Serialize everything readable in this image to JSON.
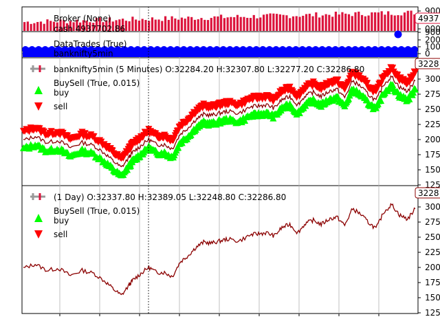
{
  "colors": {
    "broker_bar": "#dc143c",
    "trades_marker": "#0000ff",
    "buy_marker": "#00ff00",
    "sell_marker": "#ff0000",
    "price_line": "#8b0000",
    "grid": "#b0b0b0",
    "axis": "#000000",
    "cursor": "#000000"
  },
  "chart_data": [
    {
      "id": "broker",
      "type": "bar",
      "legend": {
        "line1": "Broker (None)",
        "line2": "cash 4937702.86"
      },
      "yticks": [
        "900",
        "000"
      ],
      "last_value_tag": "4937",
      "bars": 120
    },
    {
      "id": "trades",
      "type": "scatter",
      "legend": {
        "line1": "DataTrades (True)",
        "line2": "banknifty5min"
      },
      "yticks": [
        "900",
        "200",
        "100",
        "0"
      ],
      "outlier_marker": true
    },
    {
      "id": "price5m",
      "type": "line",
      "legend_title": "banknifty5min (5 Minutes) O:32284.20 H:32307.80 L:32277.20 C:32286.80",
      "legend_items": [
        {
          "marker": "none",
          "label": "BuySell (True, 0.015)"
        },
        {
          "marker": "buy",
          "label": "buy"
        },
        {
          "marker": "sell",
          "label": "sell"
        }
      ],
      "yticks": [
        "125",
        "150",
        "175",
        "200",
        "225",
        "250",
        "275",
        "300"
      ],
      "last_value_tag": "3228",
      "x": [
        0,
        0.03,
        0.06,
        0.09,
        0.12,
        0.15,
        0.18,
        0.21,
        0.23,
        0.25,
        0.27,
        0.28,
        0.3,
        0.32,
        0.34,
        0.36,
        0.38,
        0.4,
        0.42,
        0.44,
        0.46,
        0.48,
        0.5,
        0.52,
        0.55,
        0.58,
        0.6,
        0.62,
        0.64,
        0.66,
        0.68,
        0.7,
        0.72,
        0.74,
        0.76,
        0.78,
        0.8,
        0.82,
        0.84,
        0.86,
        0.88,
        0.9,
        0.92,
        0.94,
        0.96,
        0.98,
        1.0
      ],
      "y": [
        0.38,
        0.42,
        0.36,
        0.38,
        0.31,
        0.36,
        0.33,
        0.25,
        0.18,
        0.12,
        0.22,
        0.27,
        0.33,
        0.39,
        0.34,
        0.34,
        0.3,
        0.44,
        0.5,
        0.58,
        0.63,
        0.62,
        0.64,
        0.66,
        0.64,
        0.7,
        0.71,
        0.72,
        0.69,
        0.77,
        0.8,
        0.72,
        0.81,
        0.84,
        0.8,
        0.85,
        0.87,
        0.79,
        0.95,
        0.9,
        0.82,
        0.76,
        0.92,
        0.99,
        0.89,
        0.85,
        0.95
      ]
    },
    {
      "id": "price1d",
      "type": "line",
      "legend_title": " (1 Day) O:32337.80 H:32389.05 L:32248.80 C:32286.80",
      "legend_items": [
        {
          "marker": "none",
          "label": "BuySell (True, 0.015)"
        },
        {
          "marker": "buy",
          "label": "buy"
        },
        {
          "marker": "sell",
          "label": "sell"
        }
      ],
      "yticks": [
        "125",
        "150",
        "175",
        "200",
        "225",
        "250",
        "275",
        "300"
      ],
      "last_value_tag": "3228",
      "x": [
        0,
        0.03,
        0.06,
        0.09,
        0.12,
        0.15,
        0.18,
        0.21,
        0.23,
        0.25,
        0.27,
        0.28,
        0.3,
        0.32,
        0.34,
        0.36,
        0.38,
        0.4,
        0.42,
        0.44,
        0.46,
        0.48,
        0.5,
        0.52,
        0.55,
        0.58,
        0.6,
        0.62,
        0.64,
        0.66,
        0.68,
        0.7,
        0.72,
        0.74,
        0.76,
        0.78,
        0.8,
        0.82,
        0.84,
        0.86,
        0.88,
        0.9,
        0.92,
        0.94,
        0.96,
        0.98,
        1.0
      ],
      "y": [
        0.38,
        0.42,
        0.36,
        0.38,
        0.31,
        0.36,
        0.33,
        0.25,
        0.18,
        0.12,
        0.22,
        0.27,
        0.33,
        0.39,
        0.34,
        0.34,
        0.3,
        0.44,
        0.5,
        0.58,
        0.63,
        0.62,
        0.64,
        0.66,
        0.64,
        0.7,
        0.71,
        0.72,
        0.69,
        0.77,
        0.8,
        0.72,
        0.81,
        0.84,
        0.8,
        0.85,
        0.87,
        0.79,
        0.95,
        0.9,
        0.82,
        0.76,
        0.92,
        0.99,
        0.89,
        0.85,
        0.95
      ]
    }
  ]
}
